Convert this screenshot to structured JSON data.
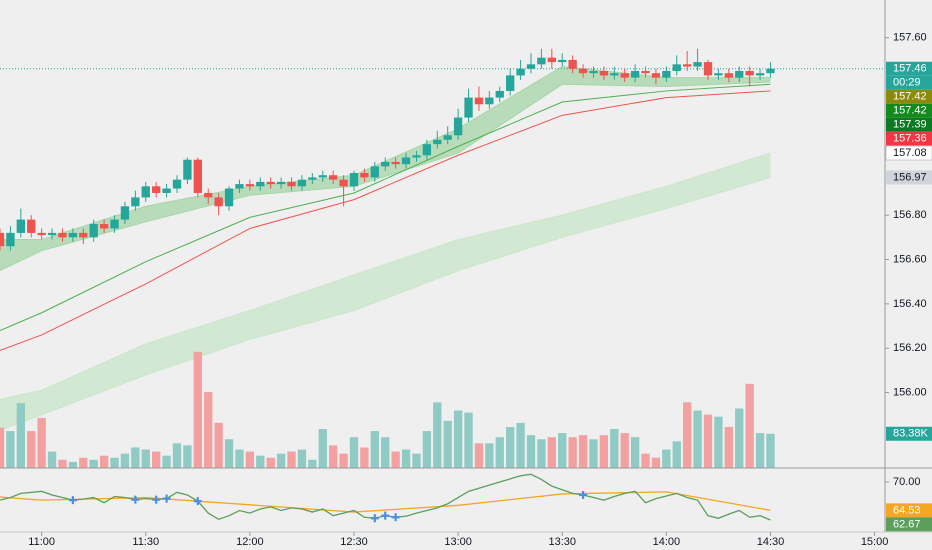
{
  "chart_data": {
    "type": "candlestick",
    "x": [
      "10:48",
      "10:51",
      "10:54",
      "10:57",
      "11:00",
      "11:03",
      "11:06",
      "11:09",
      "11:12",
      "11:15",
      "11:18",
      "11:21",
      "11:24",
      "11:27",
      "11:30",
      "11:33",
      "11:36",
      "11:39",
      "11:42",
      "11:45",
      "11:48",
      "11:51",
      "11:54",
      "11:57",
      "12:00",
      "12:03",
      "12:06",
      "12:09",
      "12:12",
      "12:15",
      "12:18",
      "12:21",
      "12:24",
      "12:27",
      "12:30",
      "12:33",
      "12:36",
      "12:39",
      "12:42",
      "12:45",
      "12:48",
      "12:51",
      "12:54",
      "12:57",
      "13:00",
      "13:03",
      "13:06",
      "13:09",
      "13:12",
      "13:15",
      "13:18",
      "13:21",
      "13:24",
      "13:27",
      "13:30",
      "13:33",
      "13:36",
      "13:39",
      "13:42",
      "13:45",
      "13:48",
      "13:51",
      "13:54",
      "13:57",
      "14:00",
      "14:03",
      "14:06",
      "14:09",
      "14:12",
      "14:15",
      "14:18",
      "14:21",
      "14:24",
      "14:27",
      "14:30"
    ],
    "open": [
      156.72,
      156.66,
      156.72,
      156.78,
      156.72,
      156.71,
      156.72,
      156.7,
      156.72,
      156.7,
      156.76,
      156.74,
      156.78,
      156.84,
      156.88,
      156.93,
      156.9,
      156.92,
      156.96,
      157.05,
      156.9,
      156.88,
      156.84,
      156.92,
      156.94,
      156.93,
      156.95,
      156.94,
      156.95,
      156.93,
      156.96,
      156.97,
      156.98,
      156.96,
      156.93,
      156.99,
      156.97,
      157.02,
      157.04,
      157.03,
      157.06,
      157.07,
      157.12,
      157.14,
      157.16,
      157.24,
      157.33,
      157.3,
      157.33,
      157.36,
      157.43,
      157.46,
      157.48,
      157.51,
      157.49,
      157.5,
      157.46,
      157.44,
      157.45,
      157.43,
      157.44,
      157.42,
      157.45,
      157.44,
      157.42,
      157.45,
      157.48,
      157.47,
      157.49,
      157.43,
      157.44,
      157.42,
      157.45,
      157.43,
      157.44
    ],
    "high": [
      156.74,
      156.75,
      156.83,
      156.8,
      156.74,
      156.74,
      156.74,
      156.74,
      156.74,
      156.78,
      156.78,
      156.8,
      156.86,
      156.91,
      156.95,
      156.95,
      156.94,
      156.98,
      157.06,
      157.06,
      156.92,
      156.9,
      156.93,
      156.96,
      156.96,
      156.97,
      156.97,
      156.97,
      156.97,
      156.98,
      156.99,
      157.0,
      157.0,
      156.98,
      157.0,
      157.01,
      157.04,
      157.06,
      157.06,
      157.08,
      157.09,
      157.14,
      157.18,
      157.2,
      157.28,
      157.37,
      157.38,
      157.36,
      157.38,
      157.46,
      157.5,
      157.53,
      157.55,
      157.55,
      157.53,
      157.52,
      157.48,
      157.47,
      157.47,
      157.47,
      157.46,
      157.48,
      157.47,
      157.46,
      157.47,
      157.52,
      157.54,
      157.55,
      157.5,
      157.46,
      157.46,
      157.47,
      157.47,
      157.46,
      157.49
    ],
    "low": [
      156.64,
      156.64,
      156.7,
      156.7,
      156.69,
      156.69,
      156.68,
      156.68,
      156.67,
      156.68,
      156.72,
      156.72,
      156.76,
      156.82,
      156.86,
      156.88,
      156.88,
      156.9,
      156.94,
      156.88,
      156.85,
      156.8,
      156.82,
      156.9,
      156.91,
      156.91,
      156.92,
      156.92,
      156.91,
      156.91,
      156.94,
      156.95,
      156.94,
      156.84,
      156.91,
      156.95,
      156.95,
      157.0,
      157.01,
      157.01,
      157.04,
      157.05,
      157.1,
      157.12,
      157.14,
      157.22,
      157.27,
      157.28,
      157.31,
      157.34,
      157.41,
      157.44,
      157.46,
      157.46,
      157.47,
      157.44,
      157.42,
      157.42,
      157.41,
      157.41,
      157.4,
      157.4,
      157.42,
      157.39,
      157.4,
      157.43,
      157.45,
      157.45,
      157.41,
      157.41,
      157.4,
      157.4,
      157.38,
      157.41,
      157.42
    ],
    "close": [
      156.66,
      156.72,
      156.78,
      156.72,
      156.71,
      156.72,
      156.7,
      156.72,
      156.7,
      156.76,
      156.74,
      156.78,
      156.84,
      156.88,
      156.93,
      156.9,
      156.92,
      156.96,
      157.05,
      156.9,
      156.88,
      156.84,
      156.92,
      156.94,
      156.93,
      156.95,
      156.94,
      156.95,
      156.93,
      156.96,
      156.97,
      156.98,
      156.96,
      156.93,
      156.99,
      156.97,
      157.02,
      157.04,
      157.03,
      157.06,
      157.07,
      157.12,
      157.14,
      157.16,
      157.24,
      157.33,
      157.3,
      157.33,
      157.36,
      157.43,
      157.46,
      157.48,
      157.51,
      157.49,
      157.5,
      157.46,
      157.44,
      157.45,
      157.43,
      157.44,
      157.42,
      157.45,
      157.44,
      157.42,
      157.45,
      157.48,
      157.47,
      157.49,
      157.43,
      157.44,
      157.42,
      157.45,
      157.43,
      157.44,
      157.46
    ],
    "up_color": "#26a69a",
    "down_color": "#ef5350",
    "xlim": [
      "10:48",
      "15:03"
    ],
    "xticks": [
      "11:00",
      "11:30",
      "12:00",
      "12:30",
      "13:00",
      "13:30",
      "14:00",
      "14:30",
      "15:00"
    ],
    "ylim": [
      155.66,
      157.77
    ],
    "yticks": [
      {
        "value": 156.0,
        "label": "156.00"
      },
      {
        "value": 156.2,
        "label": "156.20"
      },
      {
        "value": 156.4,
        "label": "156.40"
      },
      {
        "value": 156.6,
        "label": "156.60"
      },
      {
        "value": 156.8,
        "label": "156.80"
      },
      {
        "value": 157.6,
        "label": "157.60"
      }
    ],
    "bands": [
      {
        "color": "#c8e6c9",
        "x": [
          "10:48",
          "11:00",
          "11:30",
          "12:00",
          "12:30",
          "13:00",
          "13:30",
          "14:00",
          "14:30"
        ],
        "upper": [
          155.97,
          156.01,
          156.22,
          156.37,
          156.53,
          156.69,
          156.8,
          156.93,
          157.08
        ],
        "lower": [
          155.83,
          155.9,
          156.08,
          156.24,
          156.37,
          156.55,
          156.7,
          156.83,
          156.97
        ]
      },
      {
        "color": "#a5d6a7",
        "x": [
          "10:48",
          "11:00",
          "11:30",
          "12:00",
          "12:30",
          "13:00",
          "13:30",
          "14:00",
          "14:30"
        ],
        "upper": [
          156.69,
          156.69,
          156.84,
          156.93,
          156.98,
          157.19,
          157.47,
          157.42,
          157.42
        ],
        "lower": [
          156.55,
          156.64,
          156.77,
          156.89,
          156.93,
          157.08,
          157.39,
          157.38,
          157.4
        ]
      }
    ],
    "lines": [
      {
        "color": "#4caf50",
        "x": [
          "10:48",
          "11:00",
          "11:30",
          "12:00",
          "12:30",
          "13:00",
          "13:30",
          "14:00",
          "14:30"
        ],
        "values": [
          156.28,
          156.36,
          156.59,
          156.79,
          156.9,
          157.11,
          157.31,
          157.36,
          157.39
        ]
      },
      {
        "color": "#ef5350",
        "x": [
          "10:48",
          "11:00",
          "11:30",
          "12:00",
          "12:30",
          "13:00",
          "13:30",
          "14:00",
          "14:30"
        ],
        "values": [
          156.19,
          156.26,
          156.49,
          156.74,
          156.87,
          157.07,
          157.25,
          157.33,
          157.36
        ]
      }
    ],
    "price_badges": [
      {
        "value": 157.46,
        "label": "157.46",
        "color": "#26a69a",
        "text_color": "#ffffff"
      },
      {
        "label": "00:29",
        "color": "#26a69a",
        "text_color": "#ffffff"
      },
      {
        "value": 157.42,
        "label": "157.42",
        "color": "#8c8a0a",
        "text_color": "#ffffff"
      },
      {
        "value": 157.42,
        "label": "157.42",
        "color": "#138a1e",
        "text_color": "#ffffff"
      },
      {
        "value": 157.39,
        "label": "157.39",
        "color": "#0b7a22",
        "text_color": "#ffffff"
      },
      {
        "value": 157.36,
        "label": "157.36",
        "color": "#f23645",
        "text_color": "#ffffff"
      },
      {
        "value": 157.08,
        "label": "157.08",
        "color": "#ffffff",
        "text_color": "#131722"
      },
      {
        "value": 156.97,
        "label": "156.97",
        "color": "#d1d4dc",
        "text_color": "#131722"
      }
    ],
    "volume": {
      "ylim": [
        0,
        1140
      ],
      "up_color": "#8fcbc4",
      "down_color": "#f2a1a0",
      "last_label": "83.38K",
      "badge_color": "#26a69a",
      "values": [
        98,
        90,
        158,
        90,
        122,
        40,
        20,
        15,
        25,
        20,
        30,
        25,
        35,
        50,
        45,
        40,
        30,
        60,
        55,
        283,
        185,
        110,
        70,
        45,
        40,
        30,
        25,
        35,
        40,
        45,
        20,
        95,
        55,
        35,
        75,
        50,
        90,
        75,
        40,
        45,
        35,
        90,
        160,
        115,
        140,
        135,
        60,
        60,
        75,
        100,
        110,
        80,
        70,
        75,
        85,
        75,
        80,
        70,
        80,
        95,
        85,
        75,
        35,
        25,
        45,
        65,
        160,
        140,
        130,
        125,
        100,
        145,
        205,
        85,
        83.38
      ]
    },
    "oscillator": {
      "ylim": [
        60.35,
        72.32
      ],
      "yticks": [
        {
          "value": 70,
          "label": "70.00"
        }
      ],
      "lines": [
        {
          "color": "#f5a623",
          "x": [
            "10:48",
            "11:00",
            "11:30",
            "12:00",
            "12:30",
            "13:00",
            "13:30",
            "14:00",
            "14:30"
          ],
          "values": [
            67.1,
            66.5,
            67.0,
            65.6,
            64.2,
            65.5,
            67.7,
            68.1,
            64.53
          ],
          "last_label": "64.53"
        },
        {
          "color": "#5c9e5c",
          "values": [
            66.5,
            67.0,
            67.8,
            68.0,
            68.2,
            67.5,
            67.0,
            66.5,
            66.7,
            67.0,
            66.0,
            67.2,
            67.0,
            66.6,
            66.8,
            66.6,
            66.8,
            68.0,
            67.5,
            66.3,
            64.0,
            62.8,
            63.5,
            64.5,
            64.0,
            64.8,
            65.2,
            64.5,
            65.0,
            64.8,
            64.2,
            64.8,
            63.5,
            64.0,
            64.5,
            63.2,
            63.0,
            63.5,
            63.2,
            63.4,
            64.0,
            64.5,
            65.0,
            65.8,
            67.0,
            68.2,
            68.8,
            69.4,
            70.0,
            70.6,
            71.2,
            71.5,
            70.5,
            69.2,
            68.5,
            67.8,
            67.5,
            67.0,
            66.5,
            67.2,
            67.8,
            68.2,
            66.0,
            66.8,
            67.3,
            67.8,
            67.0,
            66.5,
            63.5,
            63.0,
            63.8,
            64.5,
            63.2,
            63.5,
            62.67
          ],
          "last_label": "62.67"
        }
      ],
      "signals": {
        "color": "#4a90e2",
        "x": [
          "11:09",
          "11:27",
          "11:33",
          "11:36",
          "11:45",
          "12:36",
          "12:39",
          "12:42",
          "13:36"
        ],
        "values": [
          66.5,
          66.6,
          66.6,
          66.8,
          66.3,
          63.0,
          63.5,
          63.2,
          67.5
        ]
      }
    }
  }
}
